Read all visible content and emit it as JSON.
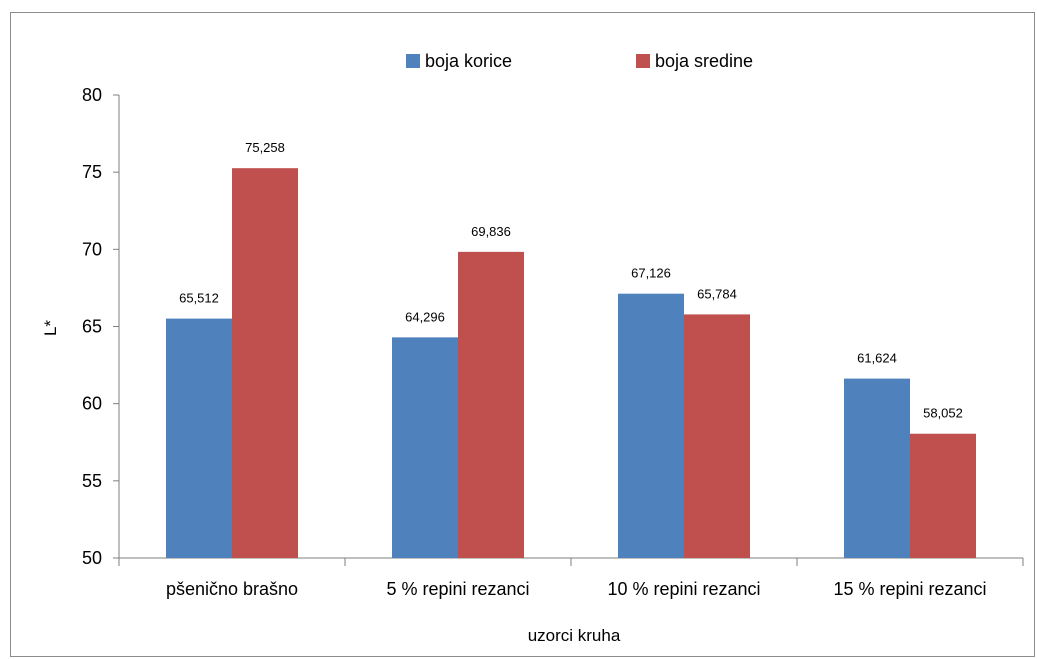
{
  "chart_data": {
    "type": "bar",
    "title": "",
    "xlabel": "uzorci kruha",
    "ylabel": "L*",
    "ylim": [
      50,
      80
    ],
    "yticks": [
      50,
      55,
      60,
      65,
      70,
      75,
      80
    ],
    "grid": false,
    "legend_position": "top",
    "categories": [
      "pšenično brašno",
      "5 % repini rezanci",
      "10 % repini rezanci",
      "15 % repini rezanci"
    ],
    "series": [
      {
        "name": "boja korice",
        "color": "#4F81BD",
        "values": [
          65.512,
          64.296,
          67.126,
          61.624
        ],
        "labels": [
          "65,512",
          "64,296",
          "67,126",
          "61,624"
        ]
      },
      {
        "name": "boja sredine",
        "color": "#C0504D",
        "values": [
          75.258,
          69.836,
          65.784,
          58.052
        ],
        "labels": [
          "75,258",
          "69,836",
          "65,784",
          "58,052"
        ]
      }
    ]
  }
}
